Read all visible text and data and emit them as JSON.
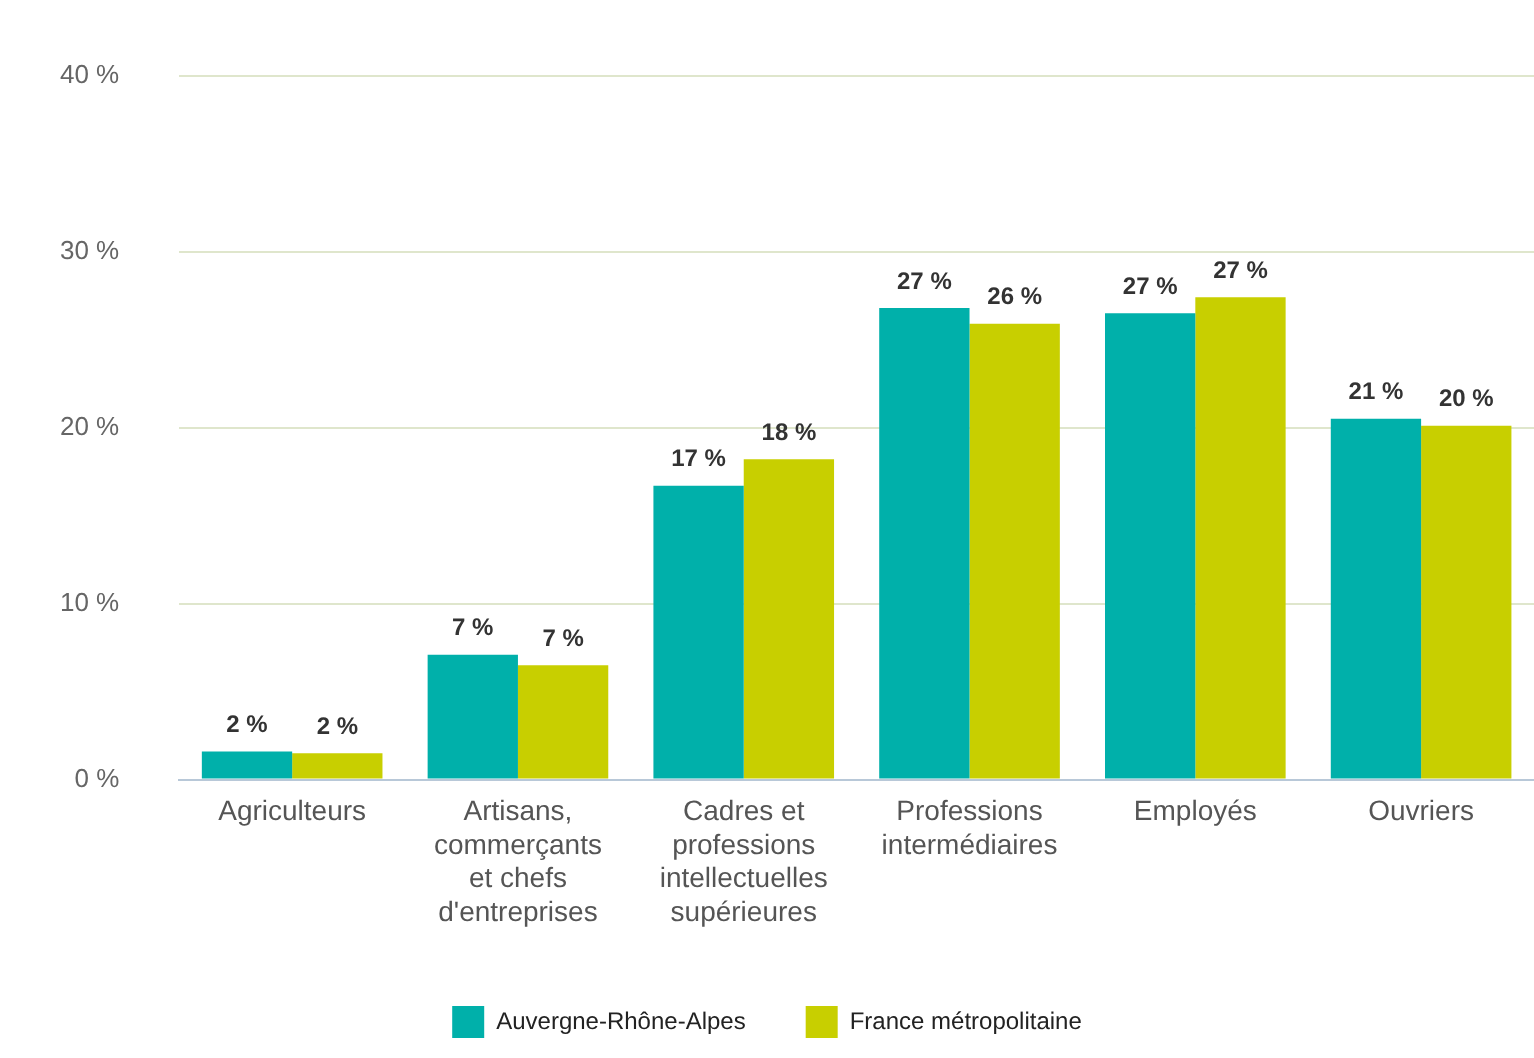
{
  "chart_data": {
    "type": "bar",
    "categories": [
      "Agriculteurs",
      "Artisans, commerçants et chefs d'entreprises",
      "Cadres et professions intellectuelles supérieures",
      "Professions intermédiaires",
      "Employés",
      "Ouvriers"
    ],
    "series": [
      {
        "name": "Auvergne-Rhône-Alpes",
        "color": "#00b0aa",
        "values": [
          1.6,
          7.1,
          16.7,
          26.8,
          26.5,
          20.5
        ],
        "value_labels": [
          "2 %",
          "7 %",
          "17 %",
          "27 %",
          "27 %",
          "21 %"
        ]
      },
      {
        "name": "France métropolitaine",
        "color": "#c8cf00",
        "values": [
          1.5,
          6.5,
          18.2,
          25.9,
          27.4,
          20.1
        ],
        "value_labels": [
          "2 %",
          "7 %",
          "18 %",
          "26 %",
          "27 %",
          "20 %"
        ]
      }
    ],
    "ylim": [
      0,
      40
    ],
    "yticks": [
      {
        "value": 0,
        "label": "0 %"
      },
      {
        "value": 10,
        "label": "10 %"
      },
      {
        "value": 20,
        "label": "20 %"
      },
      {
        "value": 30,
        "label": "30 %"
      },
      {
        "value": 40,
        "label": "40 %"
      }
    ],
    "grid": "y",
    "legend": "bottom"
  }
}
